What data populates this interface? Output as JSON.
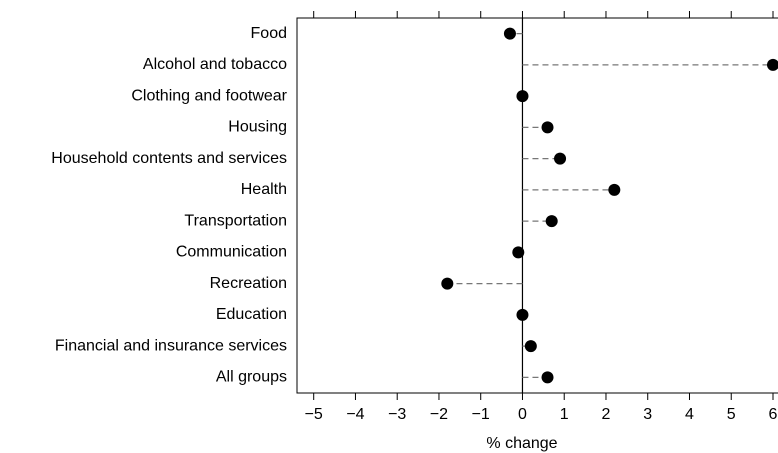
{
  "chart_data": {
    "type": "dot",
    "categories": [
      "Food",
      "Alcohol and tobacco",
      "Clothing and footwear",
      "Housing",
      "Household contents and services",
      "Health",
      "Transportation",
      "Communication",
      "Recreation",
      "Education",
      "Financial and insurance services",
      "All groups"
    ],
    "values": [
      -0.3,
      6.0,
      0.0,
      0.6,
      0.9,
      2.2,
      0.7,
      -0.1,
      -1.8,
      0.0,
      0.2,
      0.6
    ],
    "color": "#000000",
    "x_label": "% change",
    "xlim": [
      -5.4,
      6.12
    ],
    "xticks": [
      {
        "value": -5,
        "label": "−5"
      },
      {
        "value": -4,
        "label": "−4"
      },
      {
        "value": -3,
        "label": "−3"
      },
      {
        "value": -2,
        "label": "−2"
      },
      {
        "value": -1,
        "label": "−1"
      },
      0,
      1,
      2,
      3,
      4,
      5,
      6
    ]
  }
}
